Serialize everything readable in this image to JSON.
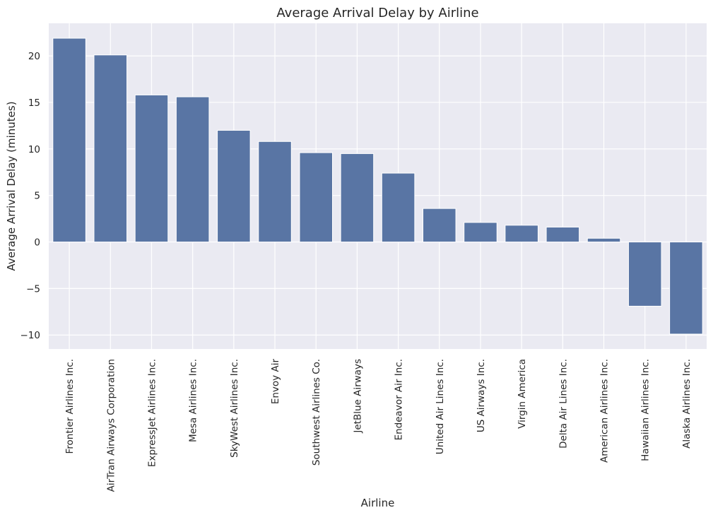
{
  "chart_data": {
    "type": "bar",
    "title": "Average Arrival Delay by Airline",
    "xlabel": "Airline",
    "ylabel": "Average Arrival Delay (minutes)",
    "categories": [
      "Frontier Airlines Inc.",
      "AirTran Airways Corporation",
      "ExpressJet Airlines Inc.",
      "Mesa Airlines Inc.",
      "SkyWest Airlines Inc.",
      "Envoy Air",
      "Southwest Airlines Co.",
      "JetBlue Airways",
      "Endeavor Air Inc.",
      "United Air Lines Inc.",
      "US Airways Inc.",
      "Virgin America",
      "Delta Air Lines Inc.",
      "American Airlines Inc.",
      "Hawaiian Airlines Inc.",
      "Alaska Airlines Inc."
    ],
    "values": [
      21.9,
      20.1,
      15.8,
      15.6,
      12.0,
      10.8,
      9.6,
      9.5,
      7.4,
      3.6,
      2.1,
      1.8,
      1.6,
      0.4,
      -6.9,
      -9.9
    ],
    "ylim": [
      -11.5,
      23.5
    ],
    "yticks": [
      -10,
      -5,
      0,
      5,
      10,
      15,
      20
    ],
    "ytick_labels": [
      "−10",
      "−5",
      "0",
      "5",
      "10",
      "15",
      "20"
    ],
    "grid": true,
    "colors": {
      "bar": "#5975a4",
      "background": "#eaeaf2",
      "grid": "#ffffff",
      "text": "#262626"
    }
  }
}
